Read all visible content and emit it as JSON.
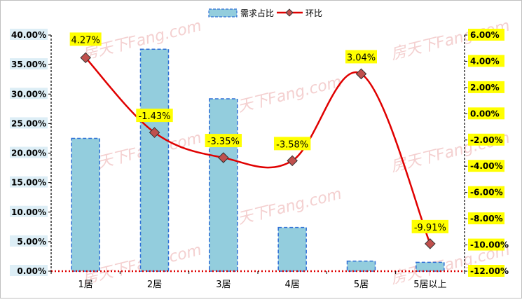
{
  "chart_data": {
    "type": "bar",
    "categories": [
      "1居",
      "2居",
      "3居",
      "4居",
      "5居",
      "5居以上"
    ],
    "series": [
      {
        "name": "需求占比",
        "type": "bar",
        "axis": "left",
        "values": [
          22.5,
          37.6,
          29.2,
          7.4,
          1.7,
          1.5
        ]
      },
      {
        "name": "环比",
        "type": "line",
        "axis": "right",
        "values": [
          4.27,
          -1.43,
          -3.35,
          -3.58,
          3.04,
          -9.91
        ],
        "labels": [
          "4.27%",
          "-1.43%",
          "-3.35%",
          "-3.58%",
          "3.04%",
          "-9.91%"
        ]
      }
    ],
    "left_axis": {
      "ylim": [
        0,
        40
      ],
      "ticks": [
        "0.00%",
        "5.00%",
        "10.00%",
        "15.00%",
        "20.00%",
        "25.00%",
        "30.00%",
        "35.00%",
        "40.00%"
      ]
    },
    "right_axis": {
      "ylim": [
        -12,
        6
      ],
      "ticks": [
        "-12.00%",
        "-10.00%",
        "-8.00%",
        "-6.00%",
        "-4.00%",
        "-2.00%",
        "0.00%",
        "2.00%",
        "4.00%",
        "6.00%"
      ]
    },
    "legend_position": "top-center",
    "title": "",
    "xlabel": "",
    "ylabel": ""
  },
  "watermark": "房天下Fang.com",
  "colors": {
    "bar_fill": "#93cddd",
    "bar_stroke": "#2e6fd6",
    "line": "#e00000",
    "marker": "#c0504d",
    "label_bg": "#ffff00",
    "tick_bg": "#ddeef6",
    "baseline": "#e00000"
  }
}
